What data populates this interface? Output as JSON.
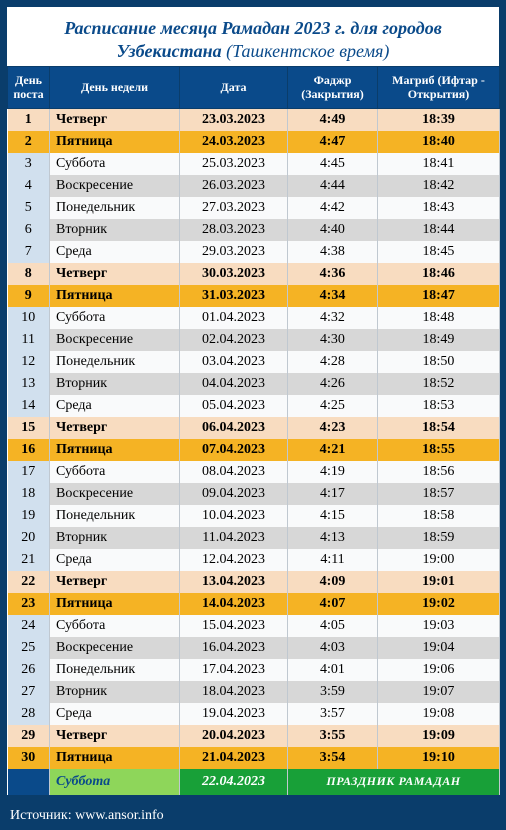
{
  "title_line1": "Расписание месяца Рамадан 2023 г. для городов",
  "title_line2a": "Узбекистана",
  "title_line2b": "(Ташкентское время)",
  "columns": {
    "day_num": "День поста",
    "weekday": "День недели",
    "date": "Дата",
    "fajr": "Фаджр (Закрытия)",
    "maghrib": "Магриб (Ифтар - Открытия)"
  },
  "col_widths": {
    "num": "42px",
    "weekday": "130px",
    "date": "108px",
    "fajr": "90px",
    "maghrib": "122px"
  },
  "rows": [
    {
      "n": "1",
      "wd": "Четверг",
      "dt": "23.03.2023",
      "f": "4:49",
      "m": "18:39",
      "cls": "peach"
    },
    {
      "n": "2",
      "wd": "Пятница",
      "dt": "24.03.2023",
      "f": "4:47",
      "m": "18:40",
      "cls": "gold"
    },
    {
      "n": "3",
      "wd": "Суббота",
      "dt": "25.03.2023",
      "f": "4:45",
      "m": "18:41",
      "cls": "light"
    },
    {
      "n": "4",
      "wd": "Воскресение",
      "dt": "26.03.2023",
      "f": "4:44",
      "m": "18:42",
      "cls": "grey"
    },
    {
      "n": "5",
      "wd": "Понедельник",
      "dt": "27.03.2023",
      "f": "4:42",
      "m": "18:43",
      "cls": "light"
    },
    {
      "n": "6",
      "wd": "Вторник",
      "dt": "28.03.2023",
      "f": "4:40",
      "m": "18:44",
      "cls": "grey"
    },
    {
      "n": "7",
      "wd": "Среда",
      "dt": "29.03.2023",
      "f": "4:38",
      "m": "18:45",
      "cls": "light"
    },
    {
      "n": "8",
      "wd": "Четверг",
      "dt": "30.03.2023",
      "f": "4:36",
      "m": "18:46",
      "cls": "peach"
    },
    {
      "n": "9",
      "wd": "Пятница",
      "dt": "31.03.2023",
      "f": "4:34",
      "m": "18:47",
      "cls": "gold"
    },
    {
      "n": "10",
      "wd": "Суббота",
      "dt": "01.04.2023",
      "f": "4:32",
      "m": "18:48",
      "cls": "light"
    },
    {
      "n": "11",
      "wd": "Воскресение",
      "dt": "02.04.2023",
      "f": "4:30",
      "m": "18:49",
      "cls": "grey"
    },
    {
      "n": "12",
      "wd": "Понедельник",
      "dt": "03.04.2023",
      "f": "4:28",
      "m": "18:50",
      "cls": "light"
    },
    {
      "n": "13",
      "wd": "Вторник",
      "dt": "04.04.2023",
      "f": "4:26",
      "m": "18:52",
      "cls": "grey"
    },
    {
      "n": "14",
      "wd": "Среда",
      "dt": "05.04.2023",
      "f": "4:25",
      "m": "18:53",
      "cls": "light"
    },
    {
      "n": "15",
      "wd": "Четверг",
      "dt": "06.04.2023",
      "f": "4:23",
      "m": "18:54",
      "cls": "peach"
    },
    {
      "n": "16",
      "wd": "Пятница",
      "dt": "07.04.2023",
      "f": "4:21",
      "m": "18:55",
      "cls": "gold"
    },
    {
      "n": "17",
      "wd": "Суббота",
      "dt": "08.04.2023",
      "f": "4:19",
      "m": "18:56",
      "cls": "light"
    },
    {
      "n": "18",
      "wd": "Воскресение",
      "dt": "09.04.2023",
      "f": "4:17",
      "m": "18:57",
      "cls": "grey"
    },
    {
      "n": "19",
      "wd": "Понедельник",
      "dt": "10.04.2023",
      "f": "4:15",
      "m": "18:58",
      "cls": "light"
    },
    {
      "n": "20",
      "wd": "Вторник",
      "dt": "11.04.2023",
      "f": "4:13",
      "m": "18:59",
      "cls": "grey"
    },
    {
      "n": "21",
      "wd": "Среда",
      "dt": "12.04.2023",
      "f": "4:11",
      "m": "19:00",
      "cls": "light"
    },
    {
      "n": "22",
      "wd": "Четверг",
      "dt": "13.04.2023",
      "f": "4:09",
      "m": "19:01",
      "cls": "peach"
    },
    {
      "n": "23",
      "wd": "Пятница",
      "dt": "14.04.2023",
      "f": "4:07",
      "m": "19:02",
      "cls": "gold"
    },
    {
      "n": "24",
      "wd": "Суббота",
      "dt": "15.04.2023",
      "f": "4:05",
      "m": "19:03",
      "cls": "light"
    },
    {
      "n": "25",
      "wd": "Воскресение",
      "dt": "16.04.2023",
      "f": "4:03",
      "m": "19:04",
      "cls": "grey"
    },
    {
      "n": "26",
      "wd": "Понедельник",
      "dt": "17.04.2023",
      "f": "4:01",
      "m": "19:06",
      "cls": "light"
    },
    {
      "n": "27",
      "wd": "Вторник",
      "dt": "18.04.2023",
      "f": "3:59",
      "m": "19:07",
      "cls": "grey"
    },
    {
      "n": "28",
      "wd": "Среда",
      "dt": "19.04.2023",
      "f": "3:57",
      "m": "19:08",
      "cls": "light"
    },
    {
      "n": "29",
      "wd": "Четверг",
      "dt": "20.04.2023",
      "f": "3:55",
      "m": "19:09",
      "cls": "peach"
    },
    {
      "n": "30",
      "wd": "Пятница",
      "dt": "21.04.2023",
      "f": "3:54",
      "m": "19:10",
      "cls": "gold"
    }
  ],
  "holiday": {
    "weekday": "Суббота",
    "date": "22.04.2023",
    "label": "ПРАЗДНИК РАМАДАН"
  },
  "source": "Источник: www.ansor.info"
}
